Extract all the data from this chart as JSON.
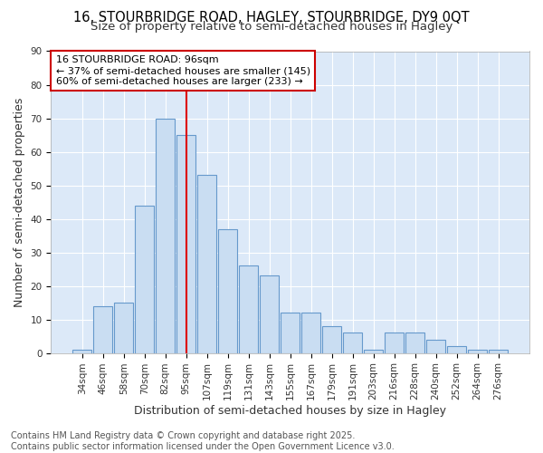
{
  "title_line1": "16, STOURBRIDGE ROAD, HAGLEY, STOURBRIDGE, DY9 0QT",
  "title_line2": "Size of property relative to semi-detached houses in Hagley",
  "xlabel": "Distribution of semi-detached houses by size in Hagley",
  "ylabel": "Number of semi-detached properties",
  "categories": [
    "34sqm",
    "46sqm",
    "58sqm",
    "70sqm",
    "82sqm",
    "95sqm",
    "107sqm",
    "119sqm",
    "131sqm",
    "143sqm",
    "155sqm",
    "167sqm",
    "179sqm",
    "191sqm",
    "203sqm",
    "216sqm",
    "228sqm",
    "240sqm",
    "252sqm",
    "264sqm",
    "276sqm"
  ],
  "values": [
    1,
    14,
    15,
    44,
    70,
    65,
    53,
    37,
    26,
    23,
    12,
    12,
    8,
    6,
    1,
    6,
    6,
    4,
    2,
    1,
    1
  ],
  "bar_color": "#c9ddf2",
  "bar_edge_color": "#6699cc",
  "vline_color": "#dd0000",
  "vline_x": 5,
  "annotation_text_line1": "16 STOURBRIDGE ROAD: 96sqm",
  "annotation_text_line2": "← 37% of semi-detached houses are smaller (145)",
  "annotation_text_line3": "60% of semi-detached houses are larger (233) →",
  "annotation_box_facecolor": "#ffffff",
  "annotation_box_edgecolor": "#cc0000",
  "ylim": [
    0,
    90
  ],
  "yticks": [
    0,
    10,
    20,
    30,
    40,
    50,
    60,
    70,
    80,
    90
  ],
  "fig_background_color": "#ffffff",
  "plot_background_color": "#dce9f8",
  "grid_color": "#ffffff",
  "footer_text": "Contains HM Land Registry data © Crown copyright and database right 2025.\nContains public sector information licensed under the Open Government Licence v3.0.",
  "title_fontsize": 10.5,
  "subtitle_fontsize": 9.5,
  "axis_label_fontsize": 9,
  "tick_fontsize": 7.5,
  "annotation_fontsize": 8,
  "footer_fontsize": 7
}
